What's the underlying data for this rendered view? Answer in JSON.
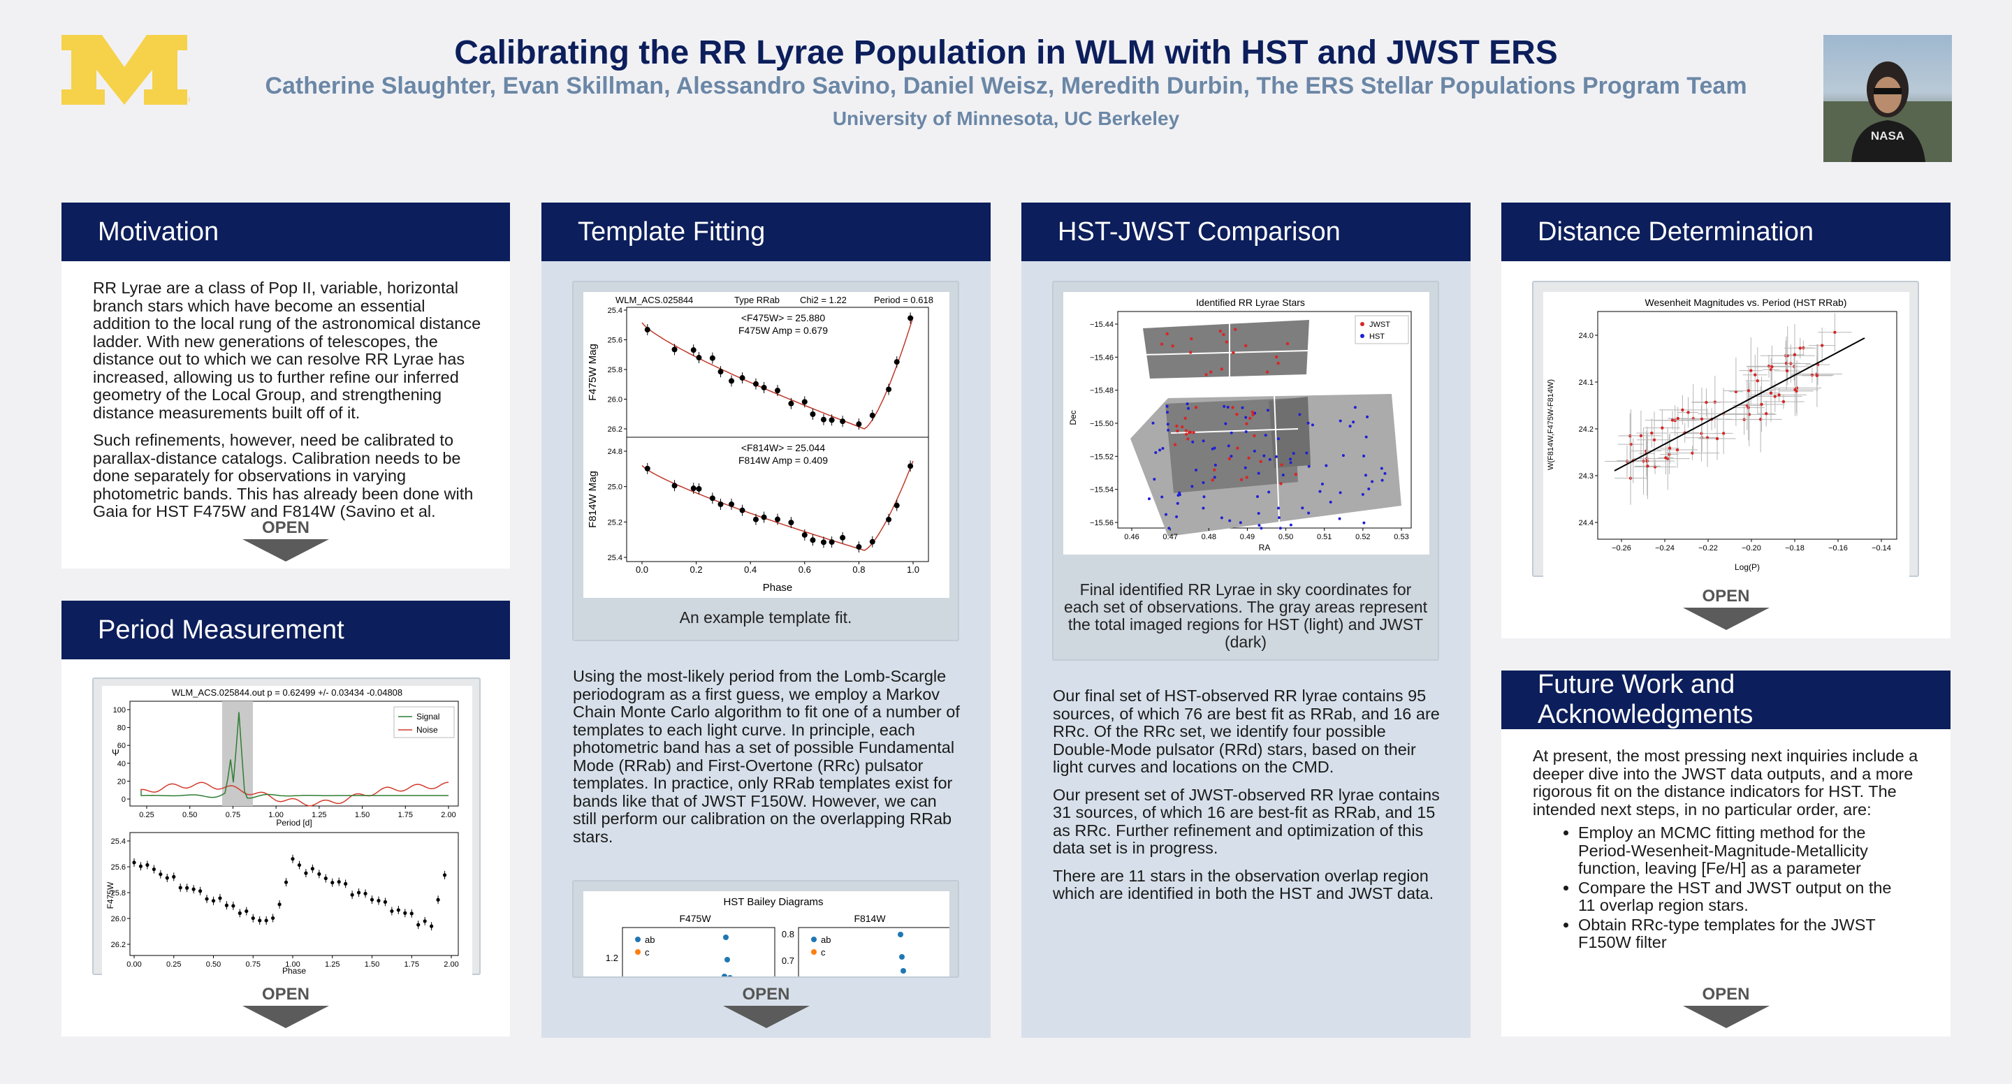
{
  "header": {
    "title": "Calibrating the RR Lyrae Population in WLM with HST and JWST ERS",
    "authors": "Catherine Slaughter, Evan Skillman, Alessandro Savino, Daniel Weisz, Meredith Durbin, The ERS Stellar Populations Program Team",
    "affiliation": "University of Minnesota, UC Berkeley",
    "logo": "block-M-logo",
    "photo_shirt_text": "NASA"
  },
  "open_label": "OPEN",
  "motivation": {
    "heading": "Motivation",
    "p1": "RR Lyrae are a class of Pop II, variable, horizontal branch stars which have become an essential addition to the local rung of the astronomical distance ladder. With new generations of telescopes, the distance out to which we can resolve RR Lyrae has increased, allowing us to further refine our inferred geometry of the Local Group, and strengthening distance measurements built off of it.",
    "p2": "Such refinements, however, need be calibrated to parallax-distance catalogs. Calibration needs to be done separately for observations in varying photometric bands. This has already been done with Gaia for HST F475W and F814W (Savino et al."
  },
  "period": {
    "heading": "Period Measurement",
    "plot_title": "WLM_ACS.025844.out   p = 0.62499 +/- 0.03434 -0.04808",
    "legend_signal": "Signal",
    "legend_noise": "Noise",
    "top_ylabel": "Ψ",
    "top_xlabel": "Period [d]",
    "top_yticks": [
      "100",
      "80",
      "60",
      "40",
      "20",
      "0"
    ],
    "top_xticks": [
      "0.25",
      "0.50",
      "0.75",
      "1.00",
      "1.25",
      "1.50",
      "1.75",
      "2.00"
    ],
    "bot_ylabel": "F475W",
    "bot_xlabel": "Phase",
    "bot_yticks": [
      "25.4",
      "25.6",
      "25.8",
      "26.0",
      "26.2"
    ],
    "bot_xticks": [
      "0.00",
      "0.25",
      "0.50",
      "0.75",
      "1.00",
      "1.25",
      "1.50",
      "1.75",
      "2.00"
    ]
  },
  "template": {
    "heading": "Template Fitting",
    "fig_header_id": "WLM_ACS.025844",
    "fig_header_type": "Type RRab",
    "fig_header_chi": "Chi2 =  1.22",
    "fig_header_period": "Period = 0.618",
    "top_mean": "<F475W> = 25.880",
    "top_amp": "F475W Amp = 0.679",
    "bot_mean": "<F814W> = 25.044",
    "bot_amp": "F814W Amp = 0.409",
    "top_ylabel": "F475W Mag",
    "bot_ylabel": "F814W Mag",
    "xlabel": "Phase",
    "top_yticks": [
      "25.4",
      "25.6",
      "25.8",
      "26.0",
      "26.2"
    ],
    "bot_yticks": [
      "24.8",
      "25.0",
      "25.2",
      "25.4"
    ],
    "xticks": [
      "0.0",
      "0.2",
      "0.4",
      "0.6",
      "0.8",
      "1.0"
    ],
    "caption": "An example template fit.",
    "body": "Using the most-likely period from the Lomb-Scargle periodogram as a first guess, we employ a Markov Chain Monte Carlo algorithm to fit one of a number of templates to each light curve. In principle, each photometric band has a set of possible Fundamental Mode (RRab) and First-Overtone (RRc) pulsator templates. In practice, only RRab templates exist for bands like that of JWST F150W. However, we can still perform our calibration on the overlapping RRab stars.",
    "bailey_title": "HST Bailey Diagrams",
    "bailey_left": "F475W",
    "bailey_right": "F814W",
    "bailey_leg_ab": "ab",
    "bailey_leg_c": "c",
    "bailey_left_tick": "1.2",
    "bailey_right_ticks": [
      "0.8",
      "0.7"
    ]
  },
  "comparison": {
    "heading": "HST-JWST Comparison",
    "plot_title": "Identified RR Lyrae Stars",
    "legend_jwst": "JWST",
    "legend_hst": "HST",
    "ylabel": "Dec",
    "xlabel": "RA",
    "yticks": [
      "−15.44",
      "−15.46",
      "−15.48",
      "−15.50",
      "−15.52",
      "−15.54",
      "−15.56"
    ],
    "xticks": [
      "0.46",
      "0.47",
      "0.48",
      "0.49",
      "0.50",
      "0.51",
      "0.52",
      "0.53"
    ],
    "caption": "Final identified RR Lyrae in sky coordinates for each set of observations. The gray areas represent the total imaged regions for HST (light) and JWST (dark)",
    "p1": "Our final set of HST-observed RR lyrae contains 95 sources, of which 76 are best fit as RRab, and 16 are RRc. Of the RRc set, we identify four possible Double-Mode pulsator (RRd) stars, based on their light curves and locations on the CMD.",
    "p2": "Our present set of JWST-observed RR lyrae contains 31 sources, of which 16 are best-fit as RRab, and 15 as RRc. Further refinement and optimization of this data set is in progress.",
    "p3": "There are 11 stars in the observation overlap region which are identified in both the HST and JWST data."
  },
  "distance": {
    "heading": "Distance Determination",
    "plot_title": "Wesenheit Magnitudes vs. Period (HST RRab)",
    "ylabel": "W(F814W,F475W-F814W)",
    "xlabel": "Log(P)",
    "yticks": [
      "24.0",
      "24.1",
      "24.2",
      "24.3",
      "24.4"
    ],
    "xticks": [
      "−0.26",
      "−0.24",
      "−0.22",
      "−0.20",
      "−0.18",
      "−0.16",
      "−0.14"
    ]
  },
  "future": {
    "heading": "Future Work and Acknowledgments",
    "intro": "At present, the most pressing next inquiries include a deeper dive into the JWST data outputs, and a more rigorous fit on the distance indicators for HST. The intended next steps, in no particular order, are:",
    "items": [
      "Employ an MCMC fitting method for the Period-Wesenheit-Magnitude-Metallicity function, leaving [Fe/H] as a parameter",
      "Compare the HST and JWST output on the 11 overlap region stars.",
      "Obtain RRc-type templates for the JWST F150W filter"
    ]
  },
  "colors": {
    "navy": "#0c1e5b",
    "maize": "#f6d14a",
    "subtitle": "#6b87a6",
    "signal": "#2e7d32",
    "noise": "#d23b2b",
    "fit": "#c0392b"
  }
}
